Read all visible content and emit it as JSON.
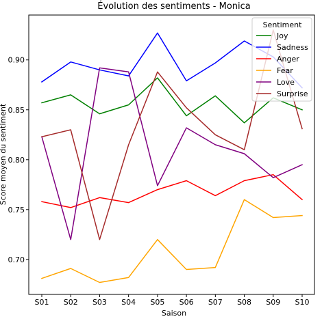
{
  "chart_data": {
    "type": "line",
    "title": "Évolution des sentiments - Monica",
    "xlabel": "Saison",
    "ylabel": "Score moyen du sentiment",
    "categories": [
      "S01",
      "S02",
      "S03",
      "S04",
      "S05",
      "S06",
      "S07",
      "S08",
      "S09",
      "S10"
    ],
    "ylim": [
      0.665,
      0.945
    ],
    "yticks": [
      0.7,
      0.75,
      0.8,
      0.85,
      0.9
    ],
    "ytick_labels": [
      "0.70",
      "0.75",
      "0.80",
      "0.85",
      "0.90"
    ],
    "grid": false,
    "legend": {
      "title": "Sentiment",
      "placement": "top-right"
    },
    "series": [
      {
        "name": "Joy",
        "color": "#008000",
        "values": [
          0.857,
          0.865,
          0.846,
          0.855,
          0.882,
          0.844,
          0.864,
          0.837,
          0.862,
          0.85
        ]
      },
      {
        "name": "Sadness",
        "color": "#0000ff",
        "values": [
          0.878,
          0.898,
          0.89,
          0.884,
          0.927,
          0.879,
          0.897,
          0.919,
          0.903,
          0.872
        ]
      },
      {
        "name": "Anger",
        "color": "#ff0000",
        "values": [
          0.758,
          0.752,
          0.762,
          0.757,
          0.77,
          0.779,
          0.764,
          0.779,
          0.785,
          0.76
        ]
      },
      {
        "name": "Fear",
        "color": "#ffa500",
        "values": [
          0.681,
          0.691,
          0.677,
          0.682,
          0.72,
          0.69,
          0.692,
          0.76,
          0.742,
          0.744
        ]
      },
      {
        "name": "Love",
        "color": "#800080",
        "values": [
          0.823,
          0.72,
          0.892,
          0.888,
          0.774,
          0.832,
          0.815,
          0.806,
          0.782,
          0.795
        ]
      },
      {
        "name": "Surprise",
        "color": "#a52a2a",
        "values": [
          0.823,
          0.83,
          0.72,
          0.815,
          0.888,
          0.852,
          0.825,
          0.81,
          0.93,
          0.831
        ]
      }
    ]
  }
}
